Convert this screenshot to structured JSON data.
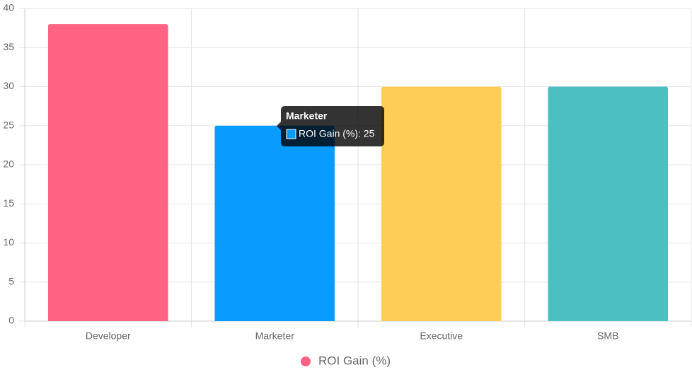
{
  "chart_data": {
    "type": "bar",
    "categories": [
      "Developer",
      "Marketer",
      "Executive",
      "SMB"
    ],
    "series": [
      {
        "name": "ROI Gain (%)",
        "color": "#ff6384",
        "colors": [
          "#ff6384",
          "#0a9bff",
          "#ffcd56",
          "#4bc0c0"
        ],
        "values": [
          38,
          25,
          30,
          30
        ]
      }
    ],
    "ylim": [
      0,
      40
    ],
    "yticks": [
      0,
      5,
      10,
      15,
      20,
      25,
      30,
      35,
      40
    ],
    "grid": true,
    "legend": "bottom",
    "tooltip": {
      "title": "Marketer",
      "text": "ROI Gain (%): 25"
    }
  }
}
